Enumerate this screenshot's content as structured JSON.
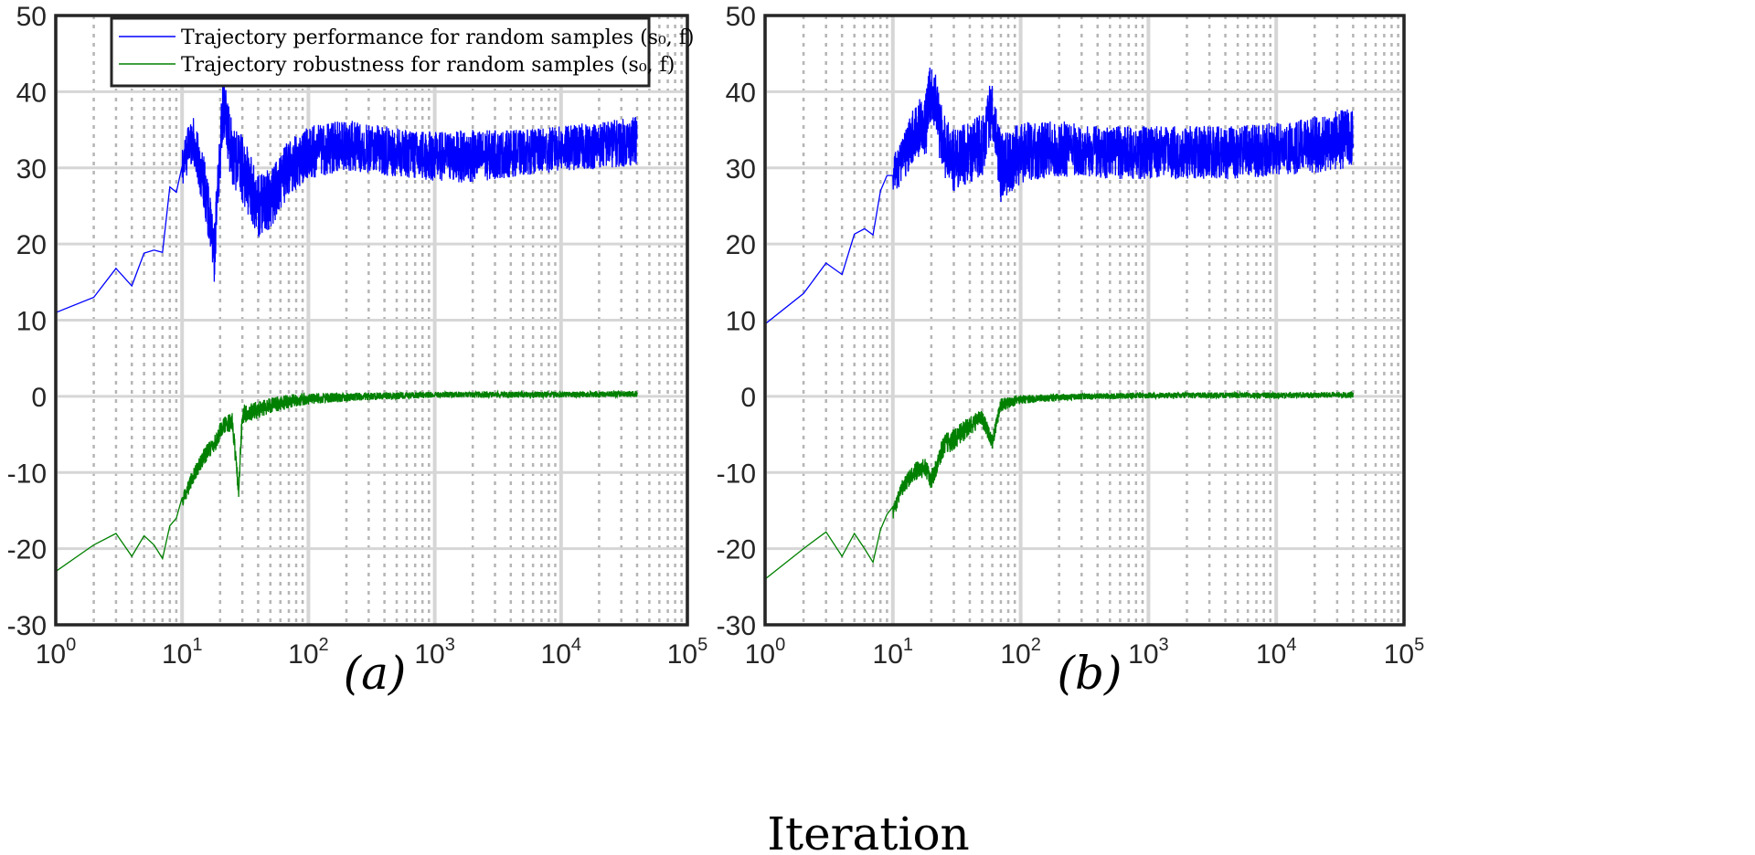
{
  "chart_data": [
    {
      "type": "line",
      "panel_label": "(a)",
      "xscale": "log",
      "xlim": [
        1,
        100000
      ],
      "ylim": [
        -30,
        50
      ],
      "yticks": [
        -30,
        -20,
        -10,
        0,
        10,
        20,
        30,
        40,
        50
      ],
      "xtick_base": "10",
      "xtick_exponents": [
        "0",
        "1",
        "2",
        "3",
        "4",
        "5"
      ],
      "grid": true,
      "legend": {
        "location": "top",
        "entries": [
          "Trajectory performance for random samples (s₀, f)",
          "Trajectory robustness for random samples (s₀, f)"
        ]
      },
      "series": [
        {
          "name": "Trajectory performance for random samples (s₀, f)",
          "color": "#0000ff",
          "x": [
            1,
            2,
            3,
            4,
            5,
            6,
            7,
            8,
            9,
            10,
            12,
            15,
            18,
            21,
            25,
            30,
            40,
            50,
            70,
            100,
            200,
            500,
            1000,
            2000,
            5000,
            10000,
            20000,
            40000
          ],
          "y": [
            11,
            13,
            16.8,
            14.5,
            18.8,
            19.2,
            18.9,
            27.5,
            26.8,
            30.2,
            34,
            28,
            18.7,
            38,
            32,
            30,
            25,
            26,
            30,
            32,
            33,
            32,
            31.5,
            31.5,
            32,
            32.5,
            33,
            33.5
          ],
          "noise_band": [
            [
              10,
              6
            ],
            [
              20,
              8
            ],
            [
              30,
              9
            ],
            [
              50,
              8
            ],
            [
              100,
              7
            ],
            [
              300,
              6.5
            ],
            [
              1000,
              6.5
            ],
            [
              2000,
              7
            ],
            [
              5000,
              6
            ],
            [
              10000,
              6
            ],
            [
              40000,
              6.5
            ]
          ]
        },
        {
          "name": "Trajectory robustness for random samples (s₀, f)",
          "color": "#008000",
          "x": [
            1,
            2,
            3,
            4,
            5,
            6,
            7,
            8,
            9,
            10,
            12,
            15,
            18,
            21,
            25,
            28,
            30,
            40,
            50,
            70,
            100,
            200,
            500,
            1000,
            2000,
            5000,
            10000,
            40000
          ],
          "y": [
            -23,
            -19.5,
            -18,
            -21,
            -18.3,
            -19.5,
            -21.3,
            -17,
            -16,
            -13.3,
            -10,
            -7,
            -5.5,
            -3,
            -2.5,
            -11.5,
            -1.5,
            -1,
            -0.5,
            0,
            0.2,
            0.3,
            0.4,
            0.5,
            0.5,
            0.5,
            0.5,
            0.6
          ],
          "noise_band": [
            [
              10,
              2
            ],
            [
              30,
              2.5
            ],
            [
              60,
              2
            ],
            [
              100,
              1.5
            ],
            [
              300,
              1
            ],
            [
              1000,
              0.8
            ],
            [
              40000,
              0.8
            ]
          ]
        }
      ]
    },
    {
      "type": "line",
      "panel_label": "(b)",
      "xscale": "log",
      "xlim": [
        1,
        100000
      ],
      "ylim": [
        -30,
        50
      ],
      "yticks": [
        -30,
        -20,
        -10,
        0,
        10,
        20,
        30,
        40,
        50
      ],
      "xtick_base": "10",
      "xtick_exponents": [
        "0",
        "1",
        "2",
        "3",
        "4",
        "5"
      ],
      "grid": true,
      "series": [
        {
          "name": "Trajectory performance for random samples (s₀, f)",
          "color": "#0000ff",
          "x": [
            1,
            2,
            3,
            4,
            5,
            6,
            7,
            8,
            9,
            10,
            12,
            15,
            18,
            20,
            25,
            30,
            40,
            50,
            60,
            70,
            100,
            200,
            500,
            1000,
            2000,
            5000,
            10000,
            20000,
            40000
          ],
          "y": [
            9.5,
            13.5,
            17.5,
            16,
            21.3,
            22,
            21.2,
            27,
            29,
            29,
            31,
            35,
            35.5,
            40.5,
            33,
            31,
            32,
            33,
            38.5,
            30,
            32,
            32.5,
            32,
            32,
            32,
            32,
            32.5,
            33,
            34
          ],
          "noise_band": [
            [
              10,
              5
            ],
            [
              20,
              9
            ],
            [
              40,
              8
            ],
            [
              70,
              9
            ],
            [
              100,
              8
            ],
            [
              300,
              7
            ],
            [
              1000,
              7
            ],
            [
              5000,
              7
            ],
            [
              10000,
              7
            ],
            [
              40000,
              8
            ]
          ]
        },
        {
          "name": "Trajectory robustness for random samples (s₀, f)",
          "color": "#008000",
          "x": [
            1,
            2,
            3,
            4,
            5,
            6,
            7,
            8,
            9,
            10,
            12,
            15,
            18,
            20,
            25,
            30,
            40,
            50,
            60,
            70,
            100,
            200,
            500,
            1000,
            2000,
            5000,
            10000,
            40000
          ],
          "y": [
            -24,
            -20,
            -17.8,
            -21,
            -18,
            -20,
            -21.8,
            -17.5,
            -15.5,
            -14.5,
            -11,
            -9,
            -8.5,
            -10,
            -5.5,
            -4.5,
            -3,
            -2,
            -5.3,
            -0.5,
            0,
            0.2,
            0.3,
            0.4,
            0.4,
            0.4,
            0.4,
            0.5
          ],
          "noise_band": [
            [
              10,
              2
            ],
            [
              30,
              3
            ],
            [
              60,
              2
            ],
            [
              100,
              1.2
            ],
            [
              300,
              0.8
            ],
            [
              1000,
              0.8
            ],
            [
              40000,
              0.8
            ]
          ]
        }
      ]
    }
  ],
  "xlabel": "Iteration"
}
